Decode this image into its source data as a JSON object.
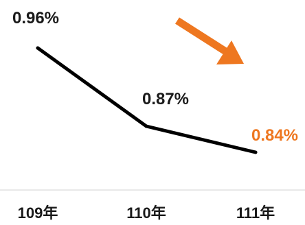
{
  "chart_data": {
    "type": "line",
    "categories": [
      "109年",
      "110年",
      "111年"
    ],
    "series": [
      {
        "values": [
          0.96,
          0.87,
          0.84
        ],
        "data_labels": [
          "0.96%",
          "0.87%",
          "0.84%"
        ]
      }
    ],
    "unit": "%",
    "ylim": [
      0.8,
      1.0
    ],
    "grid": false,
    "legend": "none",
    "highlight_last_point": true,
    "trend_arrow": "down"
  },
  "colors": {
    "line": "#000000",
    "label": "#1a1a1a",
    "highlight": "#ee7720",
    "arrow": "#ee7720",
    "baseline": "#d0d0d0"
  },
  "icons": {
    "trend_arrow": "down-right-arrow-icon"
  }
}
